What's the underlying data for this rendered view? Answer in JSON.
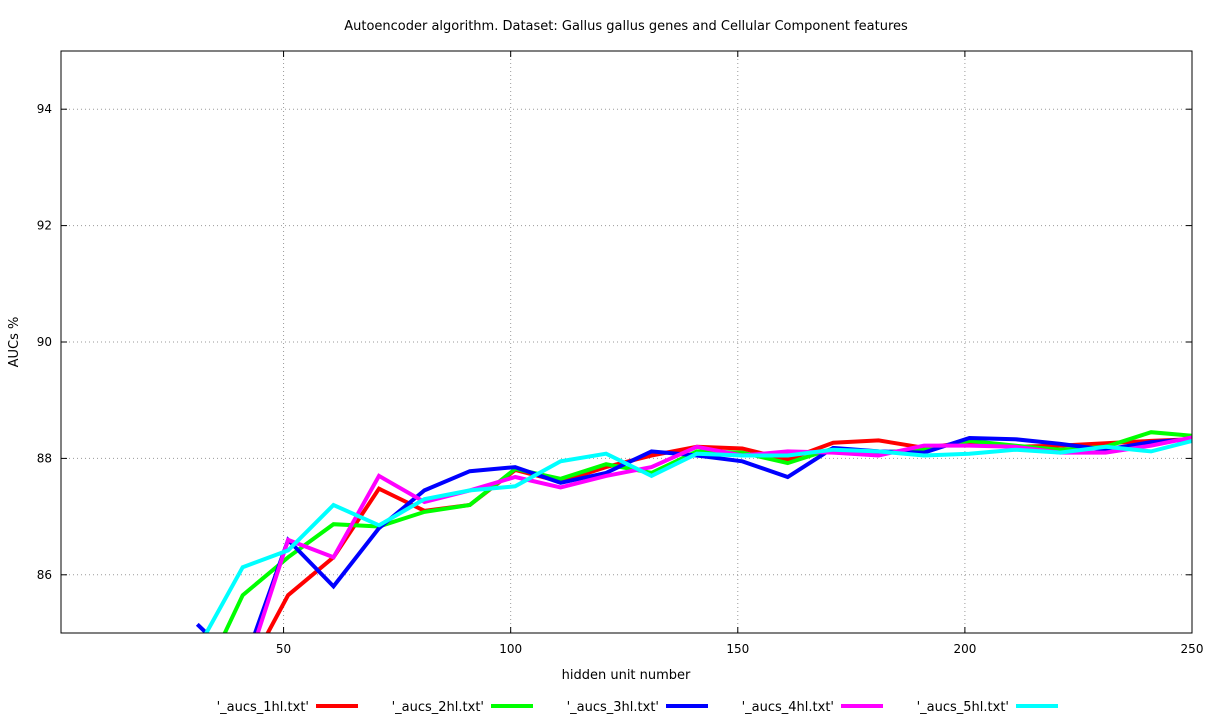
{
  "chart_data": {
    "type": "line",
    "title": "Autoencoder algorithm. Dataset: Gallus gallus genes and Cellular Component features",
    "xlabel": "hidden unit number",
    "ylabel": "AUCs %",
    "xlim": [
      1,
      250
    ],
    "ylim": [
      85,
      95
    ],
    "x_ticks": [
      50,
      100,
      150,
      200,
      250
    ],
    "y_ticks": [
      86,
      88,
      90,
      92,
      94
    ],
    "grid": true,
    "legend_position": "bottom",
    "series": [
      {
        "name": "'_aucs_1hl.txt'",
        "color": "#ff0000",
        "x": [
          41,
          51,
          61,
          71,
          81,
          91,
          101,
          111,
          121,
          131,
          141,
          151,
          161,
          171,
          181,
          191,
          201,
          211,
          221,
          231,
          241,
          250
        ],
        "y": [
          84.2,
          85.65,
          86.3,
          87.48,
          87.1,
          87.2,
          87.8,
          87.6,
          87.85,
          88.05,
          88.2,
          88.17,
          87.98,
          88.27,
          88.31,
          88.18,
          88.28,
          88.2,
          88.22,
          88.26,
          88.3,
          88.33
        ]
      },
      {
        "name": "'_aucs_2hl.txt'",
        "color": "#00ff00",
        "x": [
          31,
          41,
          51,
          61,
          71,
          81,
          91,
          101,
          111,
          121,
          131,
          141,
          151,
          161,
          171,
          181,
          191,
          201,
          211,
          221,
          231,
          241,
          250
        ],
        "y": [
          84.0,
          85.65,
          86.3,
          86.87,
          86.83,
          87.08,
          87.2,
          87.82,
          87.65,
          87.9,
          87.75,
          88.12,
          88.1,
          87.92,
          88.17,
          88.1,
          88.15,
          88.3,
          88.22,
          88.15,
          88.2,
          88.45,
          88.39
        ]
      },
      {
        "name": "'_aucs_3hl.txt'",
        "color": "#0000ff",
        "x": [
          31,
          33,
          41,
          51,
          61,
          71,
          81,
          91,
          101,
          111,
          121,
          131,
          141,
          151,
          161,
          171,
          181,
          191,
          201,
          211,
          221,
          231,
          241,
          250
        ],
        "y": [
          85.15,
          85.0,
          84.4,
          86.6,
          85.8,
          86.8,
          87.45,
          87.78,
          87.85,
          87.58,
          87.75,
          88.12,
          88.05,
          87.95,
          87.68,
          88.18,
          88.12,
          88.1,
          88.35,
          88.33,
          88.25,
          88.15,
          88.28,
          88.33
        ]
      },
      {
        "name": "'_aucs_4hl.txt'",
        "color": "#ff00ff",
        "x": [
          41,
          51,
          61,
          71,
          81,
          91,
          101,
          111,
          121,
          131,
          141,
          151,
          161,
          171,
          181,
          191,
          201,
          211,
          221,
          231,
          241,
          250
        ],
        "y": [
          84.2,
          86.6,
          86.3,
          87.7,
          87.25,
          87.45,
          87.68,
          87.5,
          87.7,
          87.85,
          88.2,
          88.05,
          88.12,
          88.1,
          88.05,
          88.22,
          88.22,
          88.2,
          88.1,
          88.1,
          88.22,
          88.36
        ]
      },
      {
        "name": "'_aucs_5hl.txt'",
        "color": "#00ffff",
        "x": [
          31,
          33,
          41,
          51,
          61,
          71,
          81,
          91,
          101,
          111,
          121,
          131,
          141,
          151,
          161,
          171,
          181,
          191,
          201,
          211,
          221,
          231,
          241,
          250
        ],
        "y": [
          83.5,
          85.0,
          86.13,
          86.42,
          87.2,
          86.85,
          87.3,
          87.45,
          87.52,
          87.95,
          88.08,
          87.7,
          88.08,
          88.05,
          88.05,
          88.15,
          88.12,
          88.05,
          88.08,
          88.15,
          88.1,
          88.2,
          88.12,
          88.3
        ]
      }
    ]
  }
}
